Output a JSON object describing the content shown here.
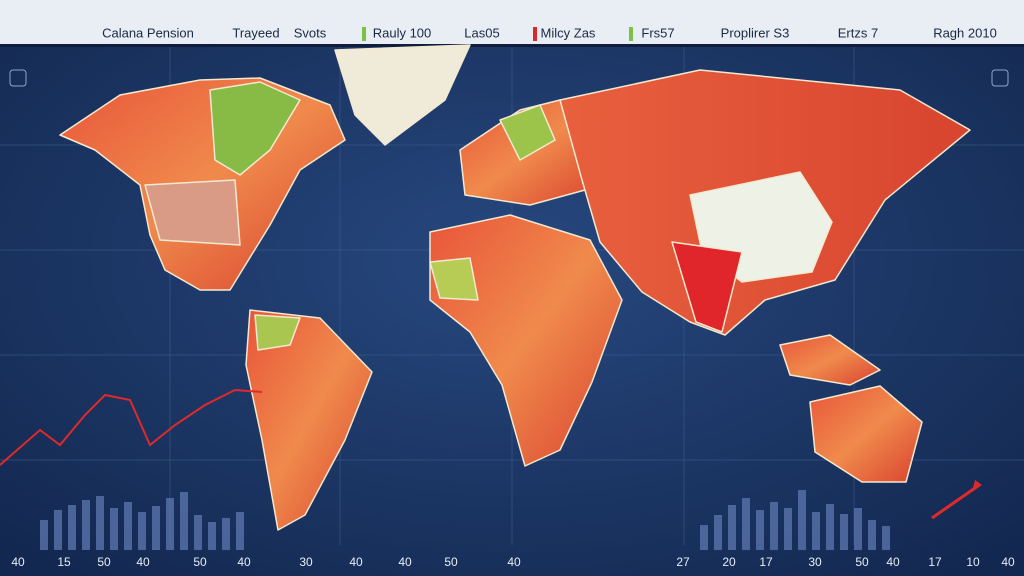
{
  "header": {
    "items": [
      "Calana Pension",
      "Trayeed",
      "Svots",
      "Rauly 100",
      "Las05",
      "Milcy Zas",
      "Frs57",
      "Proplirer S3",
      "Ertzs 7",
      "Ragh 2010"
    ]
  },
  "axis": {
    "labels": [
      "40",
      "15",
      "50",
      "40",
      "50",
      "40",
      "30",
      "40",
      "40",
      "50",
      "40",
      "27",
      "20",
      "17",
      "30",
      "50",
      "40",
      "17",
      "10",
      "40"
    ]
  }
}
